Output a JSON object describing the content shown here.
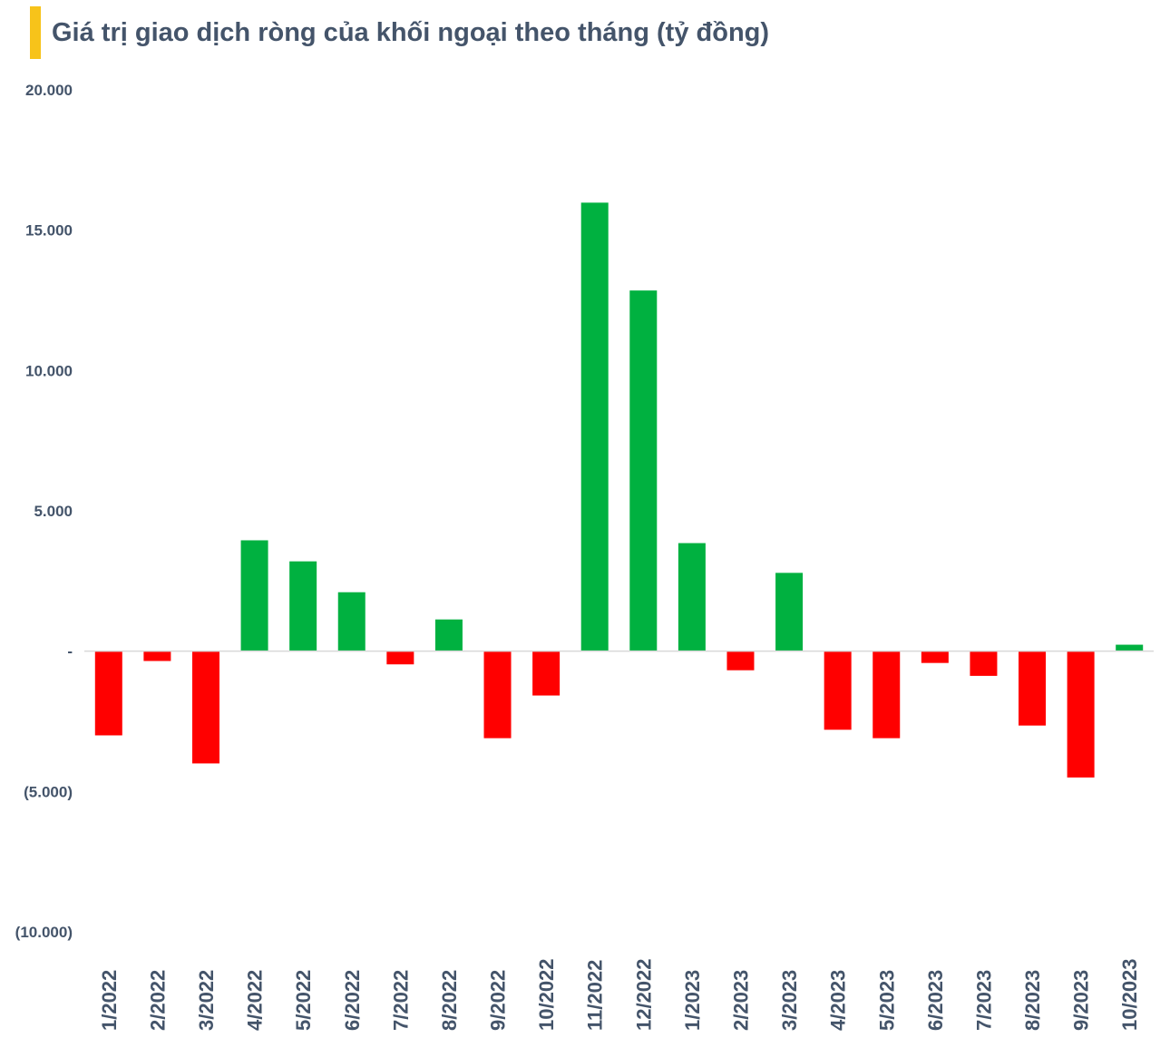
{
  "colors": {
    "accent": "#f7c31a",
    "positive": "#00b140",
    "negative": "#ff0000",
    "text": "#44546a",
    "zero_line": "#d9d9d9"
  },
  "chart_data": {
    "type": "bar",
    "title": "Giá trị giao dịch ròng của khối ngoại theo tháng (tỷ đồng)",
    "xlabel": "",
    "ylabel": "",
    "ylim": [
      -10000,
      20000
    ],
    "yticks": [
      20000,
      15000,
      10000,
      5000,
      0,
      -5000,
      -10000
    ],
    "ytick_labels": [
      "20.000",
      "15.000",
      "10.000",
      "5.000",
      "-",
      "(5.000)",
      "(10.000)"
    ],
    "grid": false,
    "legend": "none",
    "categories": [
      "1/2022",
      "2/2022",
      "3/2022",
      "4/2022",
      "5/2022",
      "6/2022",
      "7/2022",
      "8/2022",
      "9/2022",
      "10/2022",
      "11/2022",
      "12/2022",
      "1/2023",
      "2/2023",
      "3/2023",
      "4/2023",
      "5/2023",
      "6/2023",
      "7/2023",
      "8/2023",
      "9/2023",
      "10/2023"
    ],
    "values": [
      -3000,
      -350,
      -4000,
      3950,
      3200,
      2100,
      -470,
      1130,
      -3100,
      -1580,
      15980,
      12850,
      3850,
      -680,
      2790,
      -2800,
      -3100,
      -420,
      -880,
      -2650,
      -4500,
      230
    ]
  }
}
